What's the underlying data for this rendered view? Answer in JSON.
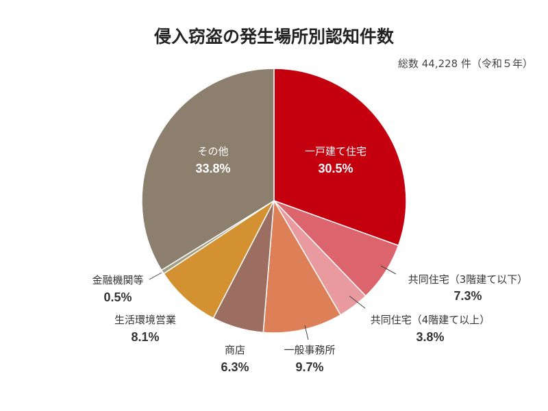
{
  "title": "侵入窃盗の発生場所別認知件数",
  "note": "総数 44,228 件（令和５年）",
  "chart_data": {
    "type": "pie",
    "title": "侵入窃盗の発生場所別認知件数",
    "total_note": "総数 44,228 件（令和５年）",
    "unit": "%",
    "slices": [
      {
        "label": "一戸建て住宅",
        "value": 30.5,
        "value_label": "30.5%",
        "color": "#c4000f"
      },
      {
        "label": "共同住宅（3階建て以下）",
        "value": 7.3,
        "value_label": "7.3%",
        "color": "#dc646d"
      },
      {
        "label": "共同住宅（4階建て以上）",
        "value": 3.8,
        "value_label": "3.8%",
        "color": "#e89a9e"
      },
      {
        "label": "一般事務所",
        "value": 9.7,
        "value_label": "9.7%",
        "color": "#dd7f57"
      },
      {
        "label": "商店",
        "value": 6.3,
        "value_label": "6.3%",
        "color": "#9b6e61"
      },
      {
        "label": "生活環境営業",
        "value": 8.1,
        "value_label": "8.1%",
        "color": "#d39131"
      },
      {
        "label": "金融機関等",
        "value": 0.5,
        "value_label": "0.5%",
        "color": "#a09e86"
      },
      {
        "label": "その他",
        "value": 33.8,
        "value_label": "33.8%",
        "color": "#8c7f6d"
      }
    ],
    "start_angle": "12 o'clock",
    "direction": "clockwise",
    "legend": "none (direct labels)"
  }
}
